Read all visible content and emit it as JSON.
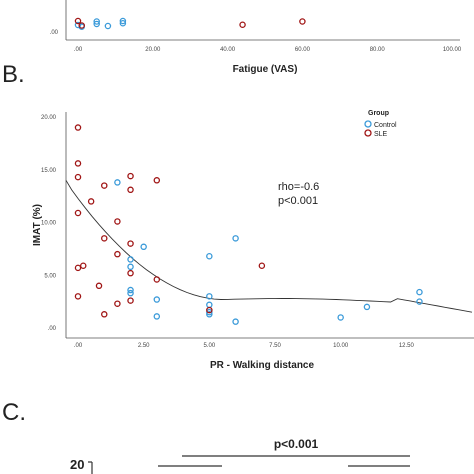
{
  "panels": {
    "b_label": "B.",
    "c_label": "C."
  },
  "colors": {
    "control": "#3a9ad9",
    "sle": "#a01515",
    "fit_line": "#333333",
    "axis": "#555555"
  },
  "chart_data": [
    {
      "type": "scatter",
      "xlabel": "Fatigue (VAS)",
      "ylabel": "",
      "xticks": [
        ".00",
        "20.00",
        "40.00",
        "60.00",
        "80.00",
        "100.00"
      ],
      "xlim": [
        0,
        100
      ],
      "yticks_visible": [
        ".00"
      ],
      "ylim": [
        0,
        20
      ],
      "series": [
        {
          "name": "Control",
          "points": [
            [
              0,
              2.8
            ],
            [
              1,
              2.1
            ],
            [
              5,
              4.2
            ],
            [
              5,
              3.2
            ],
            [
              8,
              2.4
            ],
            [
              12,
              3.5
            ],
            [
              12,
              4.4
            ]
          ]
        },
        {
          "name": "SLE",
          "points": [
            [
              0,
              4.4
            ],
            [
              1,
              2.6
            ],
            [
              44,
              2.9
            ],
            [
              60,
              4.2
            ]
          ]
        }
      ]
    },
    {
      "type": "scatter",
      "xlabel": "PR - Walking distance",
      "ylabel": "IMAT (%)",
      "xticks": [
        ".00",
        "2.50",
        "5.00",
        "7.50",
        "10.00",
        "12.50"
      ],
      "xlim": [
        -0.5,
        15
      ],
      "yticks": [
        ".00",
        "5.00",
        "10.00",
        "15.00",
        "20.00"
      ],
      "ylim": [
        0,
        20
      ],
      "legend": {
        "title": "Group",
        "items": [
          "Control",
          "SLE"
        ],
        "placement": "top-right"
      },
      "annotations": [
        "rho=-0.6",
        "p<0.001"
      ],
      "fit": "loess",
      "series": [
        {
          "name": "Control",
          "points": [
            [
              1.5,
              13.8
            ],
            [
              2.0,
              6.5
            ],
            [
              2.0,
              5.8
            ],
            [
              2.0,
              3.6
            ],
            [
              2.0,
              3.3
            ],
            [
              2.5,
              7.7
            ],
            [
              3.0,
              2.7
            ],
            [
              3.0,
              1.1
            ],
            [
              5.0,
              6.8
            ],
            [
              5.0,
              3.0
            ],
            [
              5.0,
              2.2
            ],
            [
              5.0,
              1.5
            ],
            [
              5.0,
              1.3
            ],
            [
              6.0,
              8.5
            ],
            [
              6.0,
              0.6
            ],
            [
              10.0,
              1.0
            ],
            [
              11.0,
              2.0
            ],
            [
              13.0,
              3.4
            ],
            [
              13.0,
              2.5
            ]
          ]
        },
        {
          "name": "SLE",
          "points": [
            [
              0.0,
              19.0
            ],
            [
              0.0,
              15.6
            ],
            [
              0.0,
              14.3
            ],
            [
              0.0,
              10.9
            ],
            [
              0.0,
              5.7
            ],
            [
              0.0,
              3.0
            ],
            [
              0.2,
              5.9
            ],
            [
              0.5,
              12.0
            ],
            [
              1.0,
              13.5
            ],
            [
              1.0,
              8.5
            ],
            [
              1.0,
              1.3
            ],
            [
              1.5,
              10.1
            ],
            [
              1.5,
              7.0
            ],
            [
              1.5,
              2.3
            ],
            [
              2.0,
              14.4
            ],
            [
              2.0,
              13.1
            ],
            [
              2.0,
              8.0
            ],
            [
              2.0,
              5.2
            ],
            [
              2.0,
              2.6
            ],
            [
              3.0,
              14.0
            ],
            [
              3.0,
              4.6
            ],
            [
              5.0,
              1.7
            ],
            [
              7.0,
              5.9
            ],
            [
              0.8,
              4.0
            ]
          ]
        }
      ]
    },
    {
      "type": "bar",
      "title": "",
      "annotations": [
        "p<0.001"
      ],
      "yticks_visible": [
        "20"
      ]
    }
  ]
}
